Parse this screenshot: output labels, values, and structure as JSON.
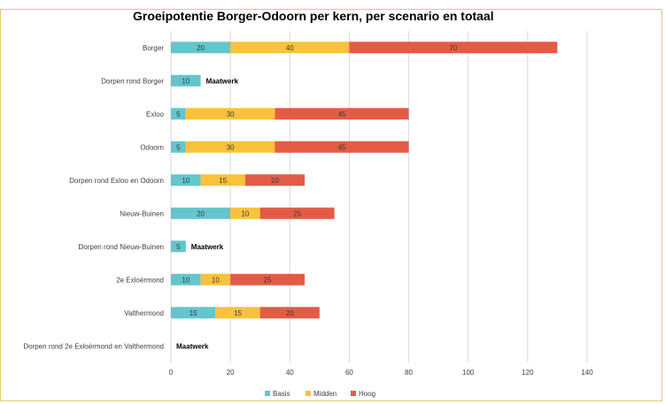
{
  "chart_data": {
    "type": "bar",
    "orientation": "horizontal",
    "stacked": true,
    "title": "Groeipotentie Borger-Odoorn per kern, per scenario en totaal",
    "categories": [
      "Borger",
      "Dorpen rond Borger",
      "Exloo",
      "Odoorn",
      "Dorpen rond Exloo en Odoorn",
      "Nieuw-Buinen",
      "Dorpen rond Nieuw-Buinen",
      "2e Exloërmond",
      "Valthermond",
      "Dorpen rond 2e Exloërmond en Valthermond"
    ],
    "series": [
      {
        "name": "Basis",
        "color": "#62c6cd",
        "values": [
          20,
          10,
          5,
          5,
          10,
          20,
          5,
          10,
          15,
          0
        ]
      },
      {
        "name": "Midden",
        "color": "#f9c23c",
        "values": [
          40,
          0,
          30,
          30,
          15,
          10,
          0,
          10,
          15,
          0
        ]
      },
      {
        "name": "Hoog",
        "color": "#e45b45",
        "values": [
          70,
          0,
          45,
          45,
          20,
          25,
          0,
          25,
          20,
          0
        ]
      }
    ],
    "annotations": [
      "",
      "Maatwerk",
      "",
      "",
      "",
      "",
      "Maatwerk",
      "",
      "",
      "Maatwerk"
    ],
    "x_ticks": [
      "0",
      "20",
      "40",
      "60",
      "80",
      "100",
      "120",
      "140"
    ],
    "xlim": [
      0,
      140
    ],
    "grid": true,
    "legend_position": "bottom"
  }
}
